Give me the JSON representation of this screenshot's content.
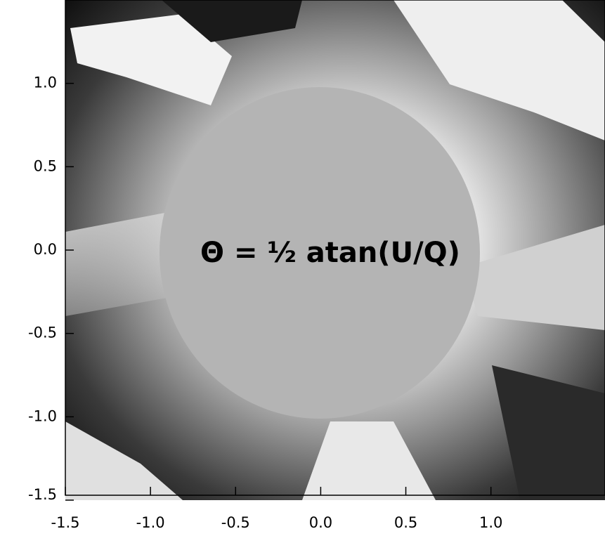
{
  "chart_data": {
    "type": "image",
    "annotation": "Θ = ½ atan(U/Q)",
    "xlim": [
      -1.5,
      1.67
    ],
    "ylim": [
      -1.5,
      1.5
    ],
    "xticks": [
      -1.5,
      {
        "value": -1,
        "label": "-1.0"
      },
      -0.5,
      {
        "value": 0,
        "label": "0.0"
      },
      0.5,
      {
        "value": 1,
        "label": "1.0"
      }
    ],
    "yticks": [
      -1.5,
      {
        "value": -1,
        "label": "-1.0"
      },
      -0.5,
      {
        "value": 0,
        "label": "0.0"
      },
      0.5,
      {
        "value": 1,
        "label": "1.0"
      }
    ],
    "disk_color": "#b4b4b4",
    "annotation_color": "#ff0000"
  }
}
